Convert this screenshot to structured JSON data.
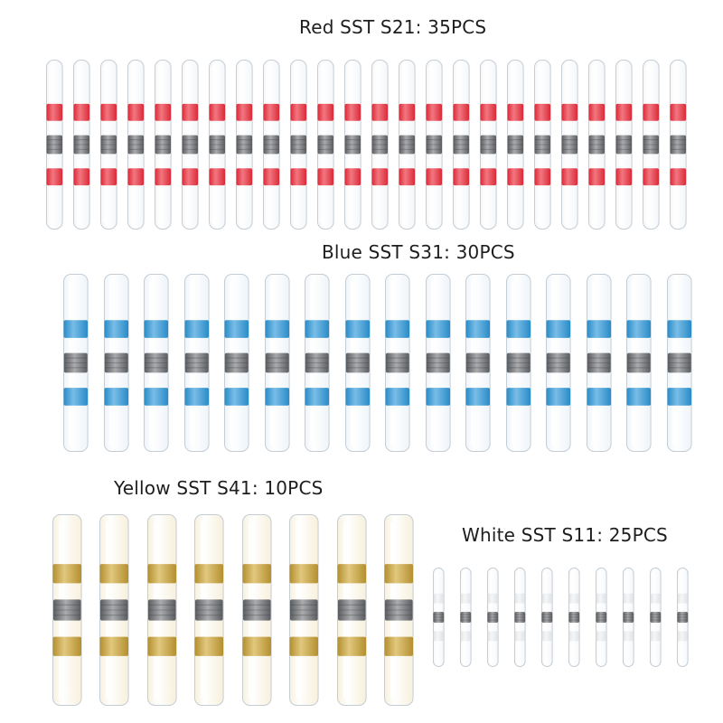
{
  "groups": [
    {
      "key": "red",
      "label": "Red SST S21: 35PCS",
      "band_color": "#d8202e",
      "band_light": "#f2707a",
      "tube_tint": "#f4f6f8",
      "count_shown": 24
    },
    {
      "key": "blue",
      "label": "Blue SST S31: 30PCS",
      "band_color": "#1f86c4",
      "band_light": "#72b9e6",
      "tube_tint": "#eef4fa",
      "count_shown": 16
    },
    {
      "key": "yellow",
      "label": "Yellow SST S41: 10PCS",
      "band_color": "#b08a26",
      "band_light": "#e0c578",
      "tube_tint": "#f7efda",
      "count_shown": 8
    },
    {
      "key": "white",
      "label": "White SST S11: 25PCS",
      "band_color": "#d6dadf",
      "band_light": "#f0f2f4",
      "tube_tint": "#f5f7f9",
      "count_shown": 10
    }
  ],
  "colors": {
    "sleeve_dark": "#5b5d60",
    "sleeve_light": "#a9abae",
    "tube_edge": "#c4ccd4"
  }
}
